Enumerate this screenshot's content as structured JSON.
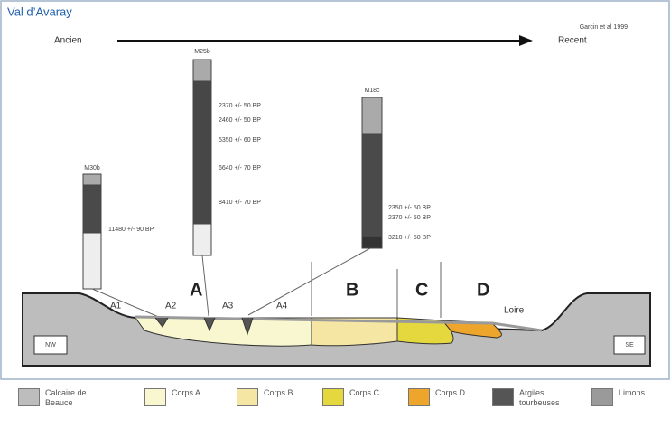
{
  "header": {
    "title": "Val d’Avaray",
    "source": "Garcin et al 1999"
  },
  "timeline": {
    "start": "Ancien",
    "end": "Recent"
  },
  "cores": [
    {
      "label": "M30b",
      "dates": [
        "11480 +/- 90 BP"
      ]
    },
    {
      "label": "M25b",
      "dates": [
        "2370 +/- 50 BP",
        "2460 +/- 50 BP",
        "5350 +/- 60 BP",
        "6640 +/- 70 BP",
        "8410 +/- 70 BP"
      ]
    },
    {
      "label": "M18c",
      "dates": [
        "2350 +/- 50 BP",
        "2370 +/- 50 BP",
        "3210 +/- 50 BP"
      ]
    }
  ],
  "zones": [
    "A",
    "B",
    "C",
    "D"
  ],
  "subzones": [
    "A1",
    "A2",
    "A3",
    "A4"
  ],
  "river": "Loire",
  "ends": [
    "NW",
    "SE"
  ],
  "legend": [
    {
      "label": "Calcaire de Beauce",
      "color": "#bdbdbd"
    },
    {
      "label": "Corps A",
      "color": "#f9f7cf"
    },
    {
      "label": "Corps B",
      "color": "#f5e6a3"
    },
    {
      "label": "Corps C",
      "color": "#e4d83e"
    },
    {
      "label": "Corps D",
      "color": "#eea52c"
    },
    {
      "label": "Argiles tourbeuses",
      "color": "#555555"
    },
    {
      "label": "Limons",
      "color": "#9a9a9a"
    }
  ]
}
